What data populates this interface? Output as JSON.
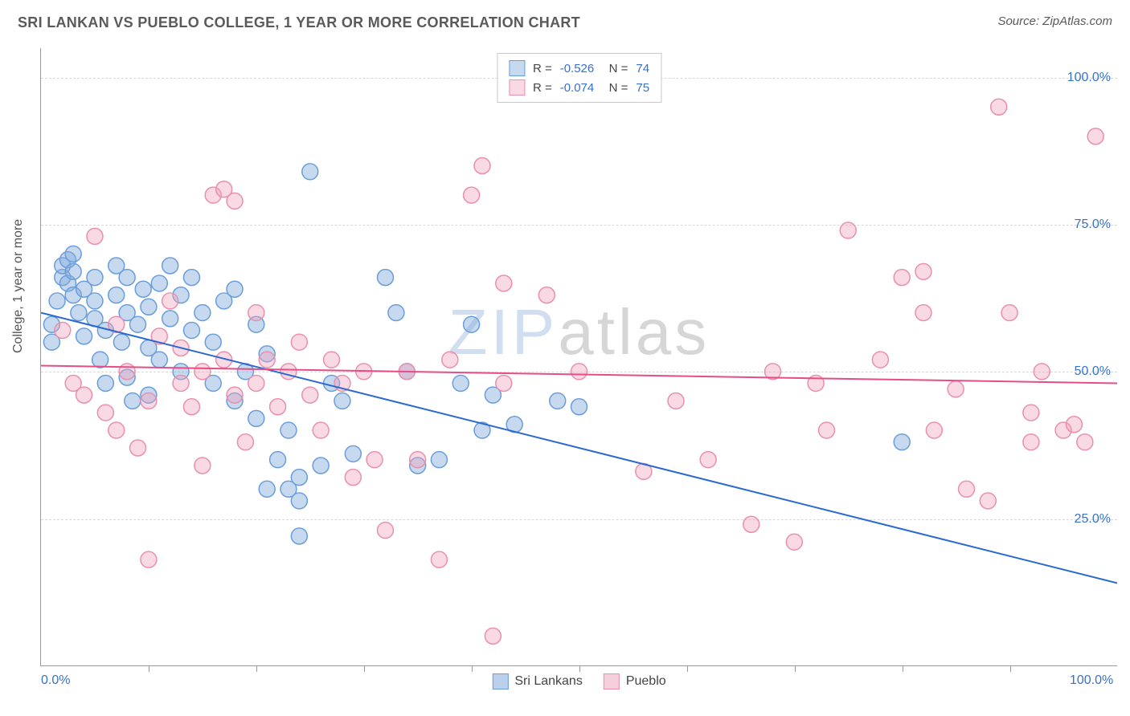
{
  "header": {
    "title": "SRI LANKAN VS PUEBLO COLLEGE, 1 YEAR OR MORE CORRELATION CHART",
    "source": "Source: ZipAtlas.com"
  },
  "chart": {
    "type": "scatter",
    "ylabel": "College, 1 year or more",
    "xlim": [
      0,
      100
    ],
    "ylim": [
      0,
      105
    ],
    "x_ticks_minor": [
      10,
      20,
      30,
      40,
      50,
      60,
      70,
      80,
      90
    ],
    "x_axis_labels": [
      {
        "pos": 0,
        "text": "0.0%"
      },
      {
        "pos": 100,
        "text": "100.0%"
      }
    ],
    "y_gridlines": [
      25,
      50,
      75,
      100
    ],
    "y_axis_labels": [
      {
        "pos": 25,
        "text": "25.0%"
      },
      {
        "pos": 50,
        "text": "50.0%"
      },
      {
        "pos": 75,
        "text": "75.0%"
      },
      {
        "pos": 100,
        "text": "100.0%"
      }
    ],
    "background_color": "#ffffff",
    "grid_color": "#d8d8d8",
    "marker_radius": 10,
    "marker_stroke_width": 1.5,
    "line_width": 2,
    "watermark": {
      "zip": "ZIP",
      "atlas": "atlas"
    },
    "series": [
      {
        "name": "Sri Lankans",
        "fill_color": "rgba(130,170,220,0.45)",
        "stroke_color": "#6a9edb",
        "line_color": "#2a6ad0",
        "R": "-0.526",
        "N": "74",
        "trend": {
          "x1": 0,
          "y1": 60,
          "x2": 100,
          "y2": 14
        },
        "points": [
          [
            1,
            55
          ],
          [
            1,
            58
          ],
          [
            1.5,
            62
          ],
          [
            2,
            66
          ],
          [
            2,
            68
          ],
          [
            2.5,
            65
          ],
          [
            2.5,
            69
          ],
          [
            3,
            63
          ],
          [
            3,
            67
          ],
          [
            3,
            70
          ],
          [
            3.5,
            60
          ],
          [
            4,
            56
          ],
          [
            4,
            64
          ],
          [
            5,
            66
          ],
          [
            5,
            62
          ],
          [
            5,
            59
          ],
          [
            5.5,
            52
          ],
          [
            6,
            57
          ],
          [
            6,
            48
          ],
          [
            7,
            63
          ],
          [
            7,
            68
          ],
          [
            7.5,
            55
          ],
          [
            8,
            60
          ],
          [
            8,
            66
          ],
          [
            8,
            49
          ],
          [
            8.5,
            45
          ],
          [
            9,
            58
          ],
          [
            9.5,
            64
          ],
          [
            10,
            61
          ],
          [
            10,
            54
          ],
          [
            10,
            46
          ],
          [
            11,
            65
          ],
          [
            11,
            52
          ],
          [
            12,
            59
          ],
          [
            12,
            68
          ],
          [
            13,
            63
          ],
          [
            13,
            50
          ],
          [
            14,
            57
          ],
          [
            14,
            66
          ],
          [
            15,
            60
          ],
          [
            16,
            55
          ],
          [
            16,
            48
          ],
          [
            17,
            62
          ],
          [
            18,
            64
          ],
          [
            18,
            45
          ],
          [
            19,
            50
          ],
          [
            20,
            42
          ],
          [
            20,
            58
          ],
          [
            21,
            30
          ],
          [
            21,
            53
          ],
          [
            22,
            35
          ],
          [
            23,
            30
          ],
          [
            23,
            40
          ],
          [
            24,
            32
          ],
          [
            24,
            28
          ],
          [
            24,
            22
          ],
          [
            25,
            84
          ],
          [
            26,
            34
          ],
          [
            27,
            48
          ],
          [
            28,
            45
          ],
          [
            29,
            36
          ],
          [
            32,
            66
          ],
          [
            33,
            60
          ],
          [
            34,
            50
          ],
          [
            35,
            34
          ],
          [
            37,
            35
          ],
          [
            39,
            48
          ],
          [
            40,
            58
          ],
          [
            41,
            40
          ],
          [
            42,
            46
          ],
          [
            44,
            41
          ],
          [
            48,
            45
          ],
          [
            50,
            44
          ],
          [
            80,
            38
          ]
        ]
      },
      {
        "name": "Pueblo",
        "fill_color": "rgba(240,160,185,0.40)",
        "stroke_color": "#e890ac",
        "line_color": "#e64d86",
        "R": "-0.074",
        "N": "75",
        "trend": {
          "x1": 0,
          "y1": 51,
          "x2": 100,
          "y2": 48
        },
        "points": [
          [
            2,
            57
          ],
          [
            3,
            48
          ],
          [
            4,
            46
          ],
          [
            5,
            73
          ],
          [
            6,
            43
          ],
          [
            7,
            40
          ],
          [
            7,
            58
          ],
          [
            8,
            50
          ],
          [
            9,
            37
          ],
          [
            10,
            45
          ],
          [
            10,
            18
          ],
          [
            11,
            56
          ],
          [
            12,
            62
          ],
          [
            13,
            48
          ],
          [
            13,
            54
          ],
          [
            14,
            44
          ],
          [
            15,
            34
          ],
          [
            15,
            50
          ],
          [
            16,
            80
          ],
          [
            17,
            81
          ],
          [
            18,
            79
          ],
          [
            17,
            52
          ],
          [
            18,
            46
          ],
          [
            19,
            38
          ],
          [
            20,
            48
          ],
          [
            20,
            60
          ],
          [
            21,
            52
          ],
          [
            22,
            44
          ],
          [
            23,
            50
          ],
          [
            24,
            55
          ],
          [
            25,
            46
          ],
          [
            26,
            40
          ],
          [
            27,
            52
          ],
          [
            28,
            48
          ],
          [
            29,
            32
          ],
          [
            30,
            50
          ],
          [
            31,
            35
          ],
          [
            32,
            23
          ],
          [
            34,
            50
          ],
          [
            35,
            35
          ],
          [
            37,
            18
          ],
          [
            38,
            52
          ],
          [
            40,
            80
          ],
          [
            41,
            85
          ],
          [
            42,
            5
          ],
          [
            43,
            48
          ],
          [
            43,
            65
          ],
          [
            47,
            63
          ],
          [
            50,
            50
          ],
          [
            56,
            33
          ],
          [
            59,
            45
          ],
          [
            62,
            35
          ],
          [
            66,
            24
          ],
          [
            68,
            50
          ],
          [
            70,
            21
          ],
          [
            72,
            48
          ],
          [
            73,
            40
          ],
          [
            75,
            74
          ],
          [
            78,
            52
          ],
          [
            80,
            66
          ],
          [
            82,
            60
          ],
          [
            82,
            67
          ],
          [
            83,
            40
          ],
          [
            85,
            47
          ],
          [
            86,
            30
          ],
          [
            88,
            28
          ],
          [
            89,
            95
          ],
          [
            90,
            60
          ],
          [
            92,
            43
          ],
          [
            92,
            38
          ],
          [
            93,
            50
          ],
          [
            95,
            40
          ],
          [
            96,
            41
          ],
          [
            97,
            38
          ],
          [
            98,
            90
          ]
        ]
      }
    ],
    "bottom_legend": [
      {
        "label": "Sri Lankans",
        "fill": "rgba(130,170,220,0.55)",
        "stroke": "#6a9edb"
      },
      {
        "label": "Pueblo",
        "fill": "rgba(240,160,185,0.50)",
        "stroke": "#e890ac"
      }
    ]
  }
}
